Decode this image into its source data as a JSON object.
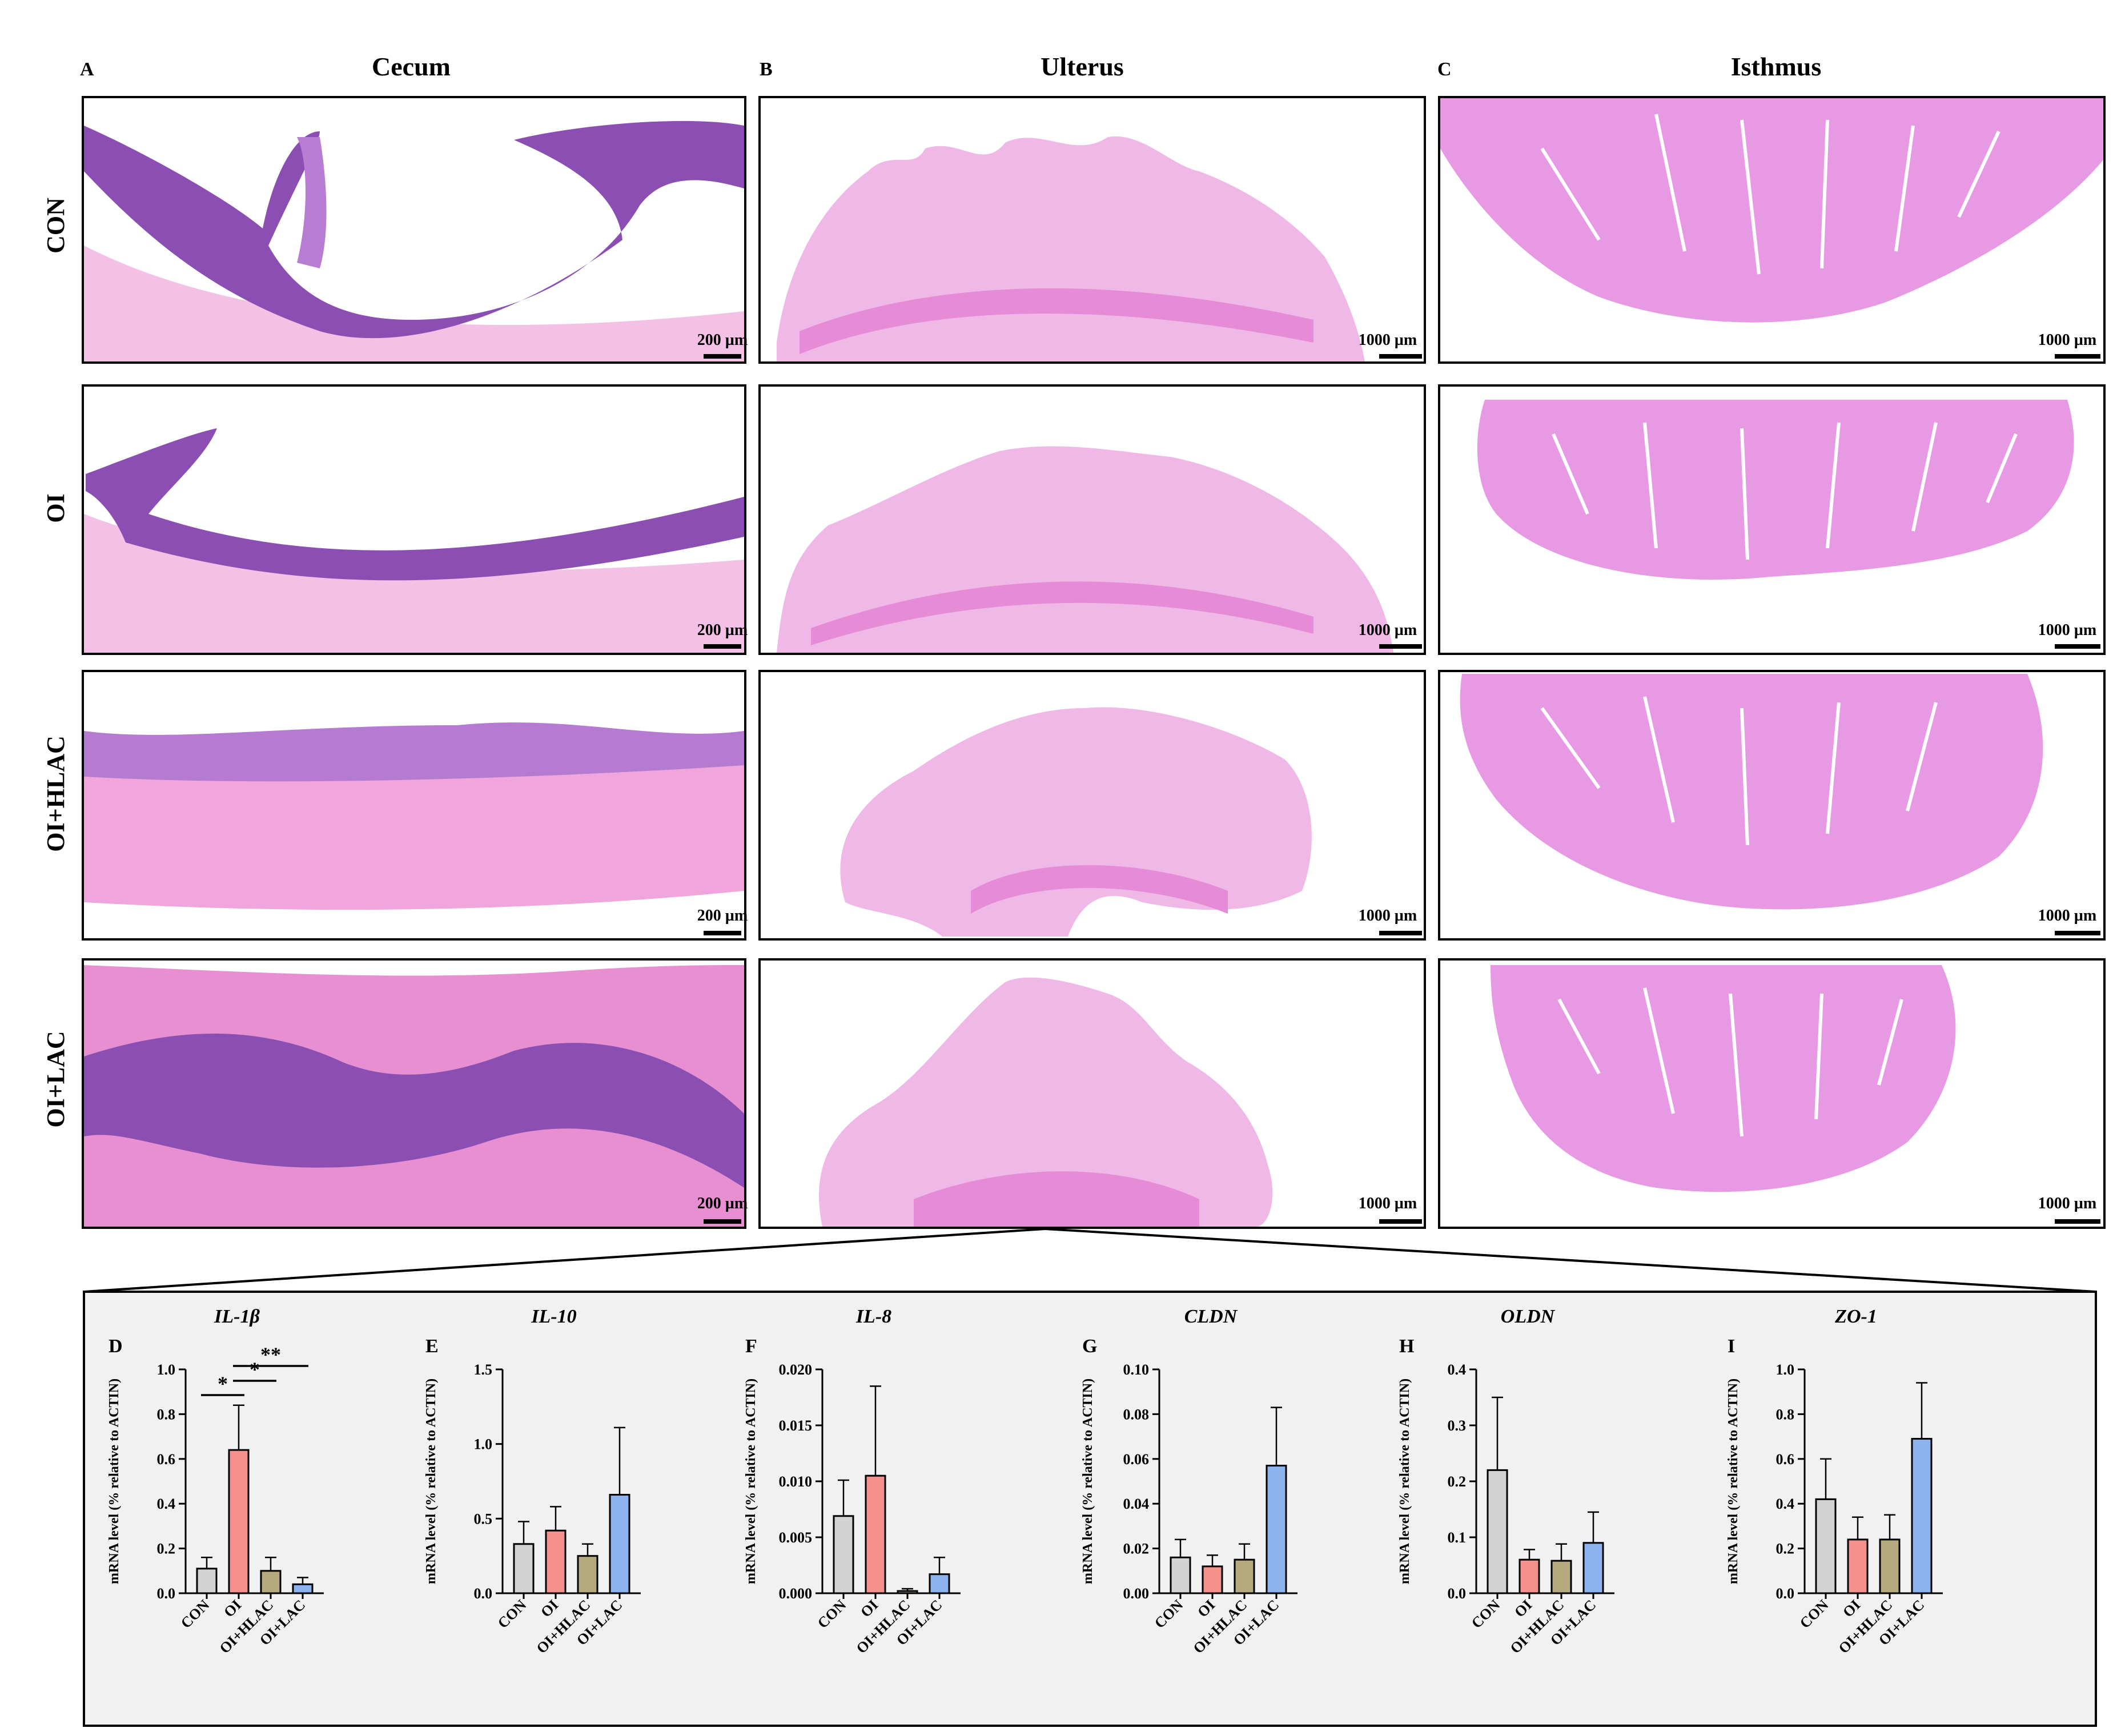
{
  "figure": {
    "panel_letters": {
      "a": "A",
      "b": "B",
      "c": "C"
    },
    "column_titles": [
      "Cecum",
      "Ulterus",
      "Isthmus"
    ],
    "row_labels": [
      "CON",
      "OI",
      "OI+HLAC",
      "OI+LAC"
    ],
    "scale_bars": {
      "cecum": [
        "200 µm",
        "200 µm",
        "200 µm",
        "200 µm"
      ],
      "uterus": [
        "1000 µm",
        "1000 µm",
        "1000 µm",
        "1000 µm"
      ],
      "isthmus": [
        "1000 µm",
        "1000 µm",
        "1000 µm",
        "1000 µm"
      ]
    }
  },
  "colors": {
    "CON": "#d3d3d3",
    "OI": "#f4918c",
    "OI+HLAC": "#b5aa7e",
    "OI+LAC": "#8db3ee",
    "cecum_stain_dark": "#8b4fb3",
    "cecum_stain_light": "#e78fd1",
    "uterus_stain": "#efb8e6",
    "isthmus_stain": "#e79ae3",
    "inset_bg": "#f1f1f1"
  },
  "chart_data": [
    {
      "type": "bar",
      "panel": "D",
      "title": "IL-1β",
      "ylabel": "mRNA level  (% relative to ACTIN)",
      "categories": [
        "CON",
        "OI",
        "OI+HLAC",
        "OI+LAC"
      ],
      "values": [
        0.11,
        0.64,
        0.1,
        0.04
      ],
      "errors": [
        0.05,
        0.2,
        0.06,
        0.03
      ],
      "ylim": [
        0,
        1.0
      ],
      "ytick_labels": [
        "0.0",
        "0.2",
        "0.4",
        "0.6",
        "0.8",
        "1.0"
      ],
      "significance": [
        {
          "from": "CON",
          "to": "OI",
          "label": "*"
        },
        {
          "from": "OI",
          "to": "OI+HLAC",
          "label": "*"
        },
        {
          "from": "OI",
          "to": "OI+LAC",
          "label": "**"
        }
      ]
    },
    {
      "type": "bar",
      "panel": "E",
      "title": "IL-10",
      "ylabel": "mRNA level  (% relative to ACTIN)",
      "categories": [
        "CON",
        "OI",
        "OI+HLAC",
        "OI+LAC"
      ],
      "values": [
        0.33,
        0.42,
        0.25,
        0.66
      ],
      "errors": [
        0.15,
        0.16,
        0.08,
        0.45
      ],
      "ylim": [
        0,
        1.5
      ],
      "ytick_labels": [
        "0.0",
        "0.5",
        "1.0",
        "1.5"
      ],
      "significance": []
    },
    {
      "type": "bar",
      "panel": "F",
      "title": "IL-8",
      "ylabel": "mRNA level  (% relative to ACTIN)",
      "categories": [
        "CON",
        "OI",
        "OI+HLAC",
        "OI+LAC"
      ],
      "values": [
        0.0069,
        0.0105,
        0.0002,
        0.0017
      ],
      "errors": [
        0.0032,
        0.008,
        0.0002,
        0.0015
      ],
      "ylim": [
        0,
        0.02
      ],
      "ytick_labels": [
        "0.000",
        "0.005",
        "0.010",
        "0.015",
        "0.020"
      ],
      "significance": []
    },
    {
      "type": "bar",
      "panel": "G",
      "title": "CLDN",
      "ylabel": "mRNA level  (% relative to ACTIN)",
      "categories": [
        "CON",
        "OI",
        "OI+HLAC",
        "OI+LAC"
      ],
      "values": [
        0.016,
        0.012,
        0.015,
        0.057
      ],
      "errors": [
        0.008,
        0.005,
        0.007,
        0.026
      ],
      "ylim": [
        0,
        0.1
      ],
      "ytick_labels": [
        "0.00",
        "0.02",
        "0.04",
        "0.06",
        "0.08",
        "0.10"
      ],
      "significance": []
    },
    {
      "type": "bar",
      "panel": "H",
      "title": "OLDN",
      "ylabel": "mRNA level  (% relative to ACTIN)",
      "categories": [
        "CON",
        "OI",
        "OI+HLAC",
        "OI+LAC"
      ],
      "values": [
        0.22,
        0.06,
        0.058,
        0.09
      ],
      "errors": [
        0.13,
        0.018,
        0.03,
        0.055
      ],
      "ylim": [
        0,
        0.4
      ],
      "ytick_labels": [
        "0.0",
        "0.1",
        "0.2",
        "0.3",
        "0.4"
      ],
      "significance": []
    },
    {
      "type": "bar",
      "panel": "I",
      "title": "ZO-1",
      "ylabel": "mRNA level  (% relative to ACTIN)",
      "categories": [
        "CON",
        "OI",
        "OI+HLAC",
        "OI+LAC"
      ],
      "values": [
        0.42,
        0.24,
        0.24,
        0.69
      ],
      "errors": [
        0.18,
        0.1,
        0.11,
        0.25
      ],
      "ylim": [
        0,
        1.0
      ],
      "ytick_labels": [
        "0.0",
        "0.2",
        "0.4",
        "0.6",
        "0.8",
        "1.0"
      ],
      "significance": []
    }
  ]
}
